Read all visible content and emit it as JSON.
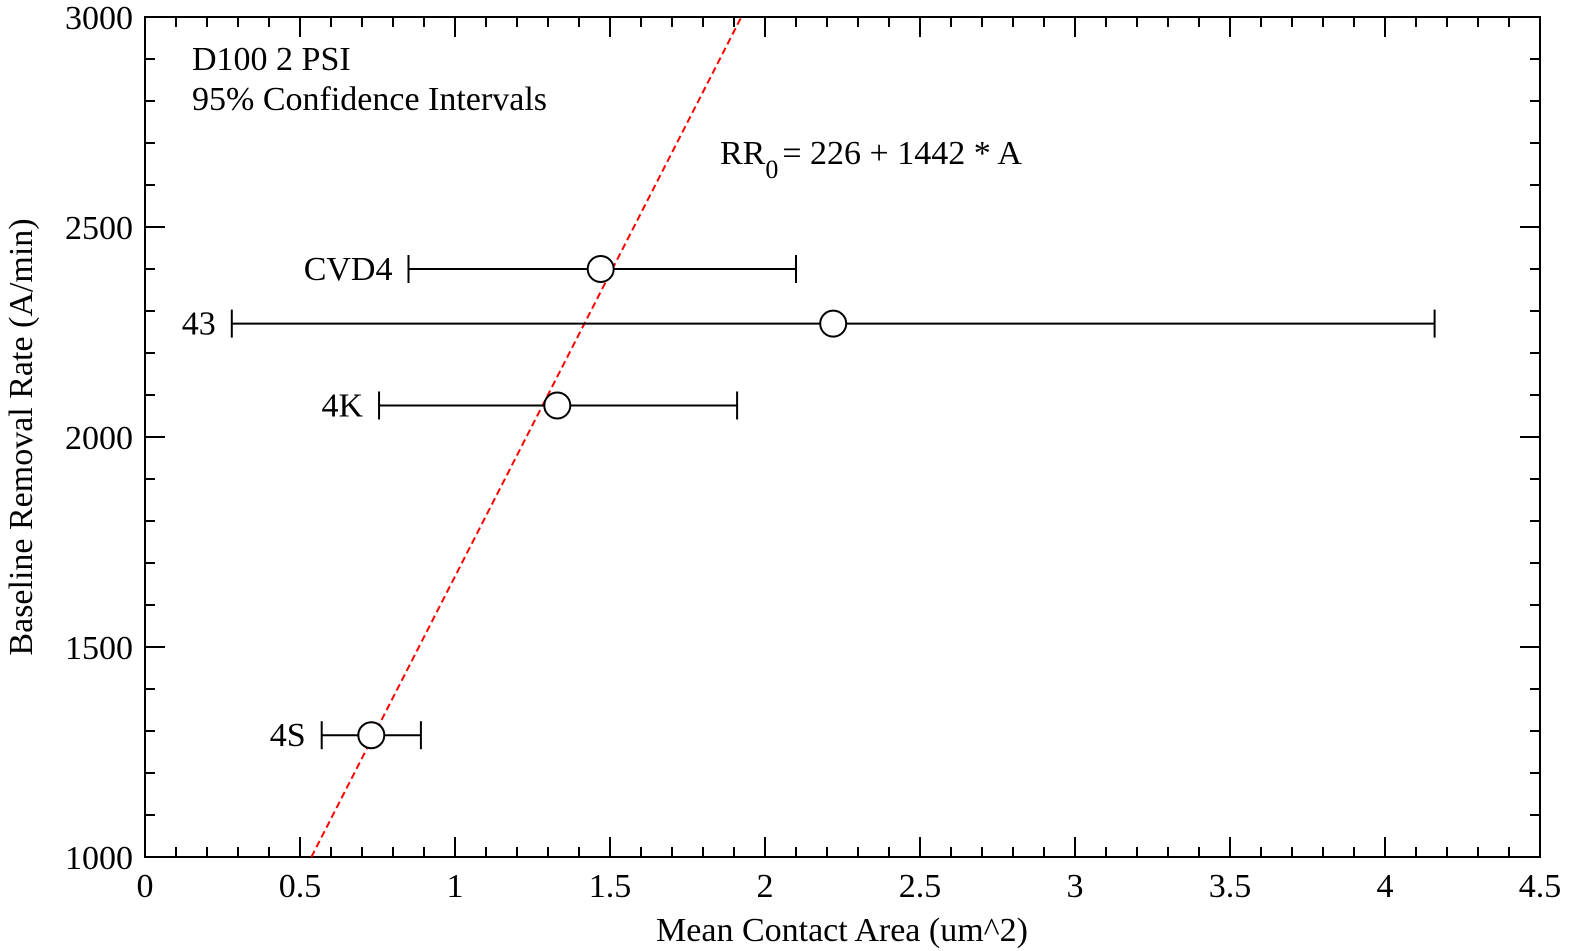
{
  "chart_data": {
    "type": "scatter",
    "x_label": "Mean Contact Area (um^2)",
    "y_label": "Baseline Removal Rate (A/min)",
    "annotations": [
      "D100 2 PSI",
      "95% Confidence Intervals"
    ],
    "equation": {
      "main": "RR",
      "subscript": "0",
      "rest": "= 226 + 1442 * A"
    },
    "labels": [
      "CVD4",
      "43",
      "4K",
      "4S"
    ],
    "x": [
      1.47,
      2.22,
      1.33,
      0.73
    ],
    "values": [
      2400,
      2270,
      2075,
      1290
    ],
    "x_low": [
      0.85,
      0.28,
      0.755,
      0.57
    ],
    "x_high": [
      2.1,
      4.16,
      1.91,
      0.89
    ],
    "color": "#000000",
    "fit": {
      "intercept": 226,
      "slope": 1442,
      "color": "#ff0000"
    },
    "xlim": [
      0,
      4.5
    ],
    "ylim": [
      1000,
      3000
    ],
    "xticks": [
      0,
      0.5,
      1,
      1.5,
      2,
      2.5,
      3,
      3.5,
      4,
      4.5
    ],
    "yticks": [
      1000,
      1500,
      2000,
      2500,
      3000
    ],
    "minor_step": {
      "x": 0.1,
      "y": 100
    }
  }
}
